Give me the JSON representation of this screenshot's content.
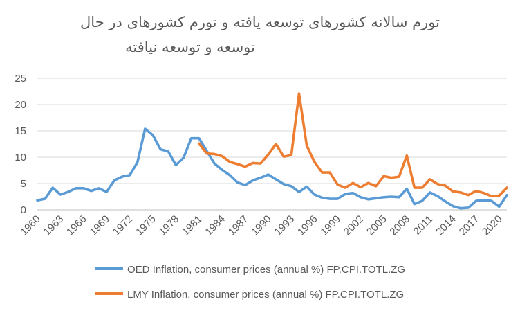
{
  "chart_data": {
    "type": "line",
    "title_lines": [
      "تورم سالانه کشورهای توسعه یافته  و تورم کشورهای در حال",
      "توسعه و توسعه نیافته"
    ],
    "xlabel": "",
    "ylabel": "",
    "ylim": [
      0,
      25
    ],
    "yticks": [
      "0",
      "5",
      "10",
      "15",
      "20",
      "25"
    ],
    "x": [
      1960,
      1961,
      1962,
      1963,
      1964,
      1965,
      1966,
      1967,
      1968,
      1969,
      1970,
      1971,
      1972,
      1973,
      1974,
      1975,
      1976,
      1977,
      1978,
      1979,
      1980,
      1981,
      1982,
      1983,
      1984,
      1985,
      1986,
      1987,
      1988,
      1989,
      1990,
      1991,
      1992,
      1993,
      1994,
      1995,
      1996,
      1997,
      1998,
      1999,
      2000,
      2001,
      2002,
      2003,
      2004,
      2005,
      2006,
      2007,
      2008,
      2009,
      2010,
      2011,
      2012,
      2013,
      2014,
      2015,
      2016,
      2017,
      2018,
      2019,
      2020,
      2021
    ],
    "xtick_labels": [
      "1960",
      "1963",
      "1966",
      "1969",
      "1972",
      "1975",
      "1978",
      "1981",
      "1984",
      "1987",
      "1990",
      "1993",
      "1996",
      "1999",
      "2002",
      "2005",
      "2008",
      "2011",
      "2014",
      "2017",
      "2020"
    ],
    "series": [
      {
        "name": "OED Inflation, consumer prices (annual %) FP.CPI.TOTL.ZG",
        "color": "#5b9bd5",
        "values": [
          1.8,
          2.1,
          4.2,
          2.9,
          3.4,
          4.1,
          4.1,
          3.6,
          4.1,
          3.4,
          5.6,
          6.3,
          6.6,
          9.0,
          15.4,
          14.2,
          11.5,
          11.1,
          8.5,
          9.9,
          13.6,
          13.6,
          11.2,
          8.8,
          7.6,
          6.6,
          5.2,
          4.7,
          5.6,
          6.1,
          6.7,
          5.8,
          4.9,
          4.5,
          3.4,
          4.4,
          2.9,
          2.3,
          2.1,
          2.1,
          3.0,
          3.2,
          2.4,
          2.0,
          2.2,
          2.4,
          2.5,
          2.4,
          4.0,
          1.1,
          1.7,
          3.3,
          2.6,
          1.6,
          0.7,
          0.3,
          0.4,
          1.7,
          1.8,
          1.7,
          0.6,
          2.8
        ]
      },
      {
        "name": "LMY Inflation, consumer prices (annual %) FP.CPI.TOTL.ZG",
        "color": "#ed7d31",
        "values": [
          null,
          null,
          null,
          null,
          null,
          null,
          null,
          null,
          null,
          null,
          null,
          null,
          null,
          null,
          null,
          null,
          null,
          null,
          null,
          null,
          null,
          12.6,
          10.7,
          10.6,
          10.2,
          9.1,
          8.7,
          8.2,
          8.9,
          8.8,
          10.5,
          12.5,
          10.1,
          10.4,
          22.1,
          12.2,
          9.1,
          7.1,
          7.1,
          4.8,
          4.2,
          5.1,
          4.3,
          5.1,
          4.5,
          6.4,
          6.1,
          6.3,
          10.3,
          4.2,
          4.2,
          5.8,
          4.9,
          4.6,
          3.5,
          3.3,
          2.8,
          3.6,
          3.2,
          2.6,
          2.7,
          4.2
        ]
      }
    ]
  }
}
